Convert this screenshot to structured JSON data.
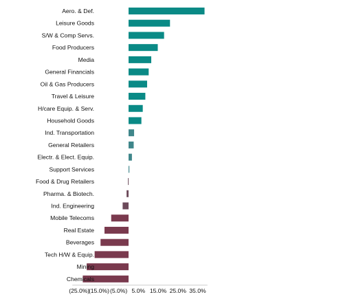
{
  "chart_data": {
    "type": "bar",
    "orientation": "horizontal",
    "categories": [
      "Aero. & Def.",
      "Leisure Goods",
      "S/W & Comp Servs.",
      "Food Producers",
      "Media",
      "General Financials",
      "Oil & Gas Producers",
      "Travel & Leisure",
      "H/care Equip. & Serv.",
      "Household Goods",
      "Ind. Transportation",
      "General Retailers",
      "Electr. & Elect. Equip.",
      "Support Services",
      "Food & Drug Retailers",
      "Pharma. & Biotech.",
      "Ind. Engineering",
      "Mobile Telecoms",
      "Real Estate",
      "Beverages",
      "Tech H/W & Equip.",
      "Mining",
      "Chemicals"
    ],
    "values": [
      38.5,
      21.0,
      18.0,
      14.8,
      11.5,
      10.2,
      9.4,
      8.5,
      7.2,
      6.5,
      2.8,
      2.6,
      1.7,
      0.4,
      -0.3,
      -1.0,
      -3.0,
      -8.8,
      -12.2,
      -14.2,
      -17.2,
      -21.2,
      -23.2
    ],
    "xlim": [
      -28.5,
      40
    ],
    "xticks": [
      -25,
      -15,
      -5,
      5,
      15,
      25,
      35
    ],
    "xtick_labels": [
      "(25.0%)",
      "(15.0%)",
      "(5.0%)",
      "5.0%",
      "15.0%",
      "25.0%",
      "35.0%"
    ],
    "title": "",
    "xlabel": "",
    "ylabel": "",
    "grid": false,
    "colors": {
      "strong_positive": "#0a8a86",
      "mild_positive": "#3f868a",
      "mild_negative": "#6c4a5a",
      "negative": "#7a3a4e",
      "axis": "#cccccc"
    }
  }
}
